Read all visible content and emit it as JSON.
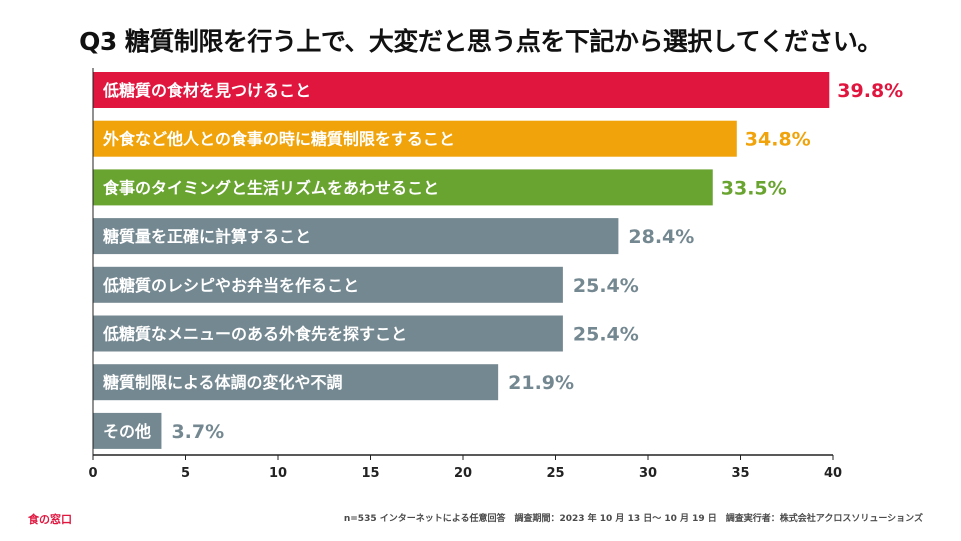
{
  "title": "Q3 糖質制限を行う上で、大変だと思う点を下記から選択してください。",
  "footer": {
    "brand": "食の窓口",
    "note": "n=535 インターネットによる任意回答　調査期間：2023 年 10 月 13 日～ 10 月 19 日　調査実行者：株式会社アクロスソリューションズ"
  },
  "colors": {
    "red": "#e0163f",
    "orange": "#f0a30a",
    "green": "#6aa430",
    "gray": "#748891",
    "axis": "#222222"
  },
  "chart_data": {
    "type": "bar",
    "orientation": "horizontal",
    "categories": [
      "低糖質の食材を見つけること",
      "外食など他人との食事の時に糖質制限をすること",
      "食事のタイミングと生活リズムをあわせること",
      "糖質量を正確に計算すること",
      "低糖質のレシピやお弁当を作ること",
      "低糖質なメニューのある外食先を探すこと",
      "糖質制限による体調の変化や不調",
      "その他"
    ],
    "values": [
      39.8,
      34.8,
      33.5,
      28.4,
      25.4,
      25.4,
      21.9,
      3.7
    ],
    "value_labels": [
      "39.8%",
      "34.8%",
      "33.5%",
      "28.4%",
      "25.4%",
      "25.4%",
      "21.9%",
      "3.7%"
    ],
    "bar_colors": [
      "red",
      "orange",
      "green",
      "gray",
      "gray",
      "gray",
      "gray",
      "gray"
    ],
    "xlim": [
      0,
      40
    ],
    "xticks": [
      0,
      5,
      10,
      15,
      20,
      25,
      30,
      35,
      40
    ],
    "xlabel": "",
    "ylabel": "",
    "grid": false,
    "legend": "none"
  }
}
